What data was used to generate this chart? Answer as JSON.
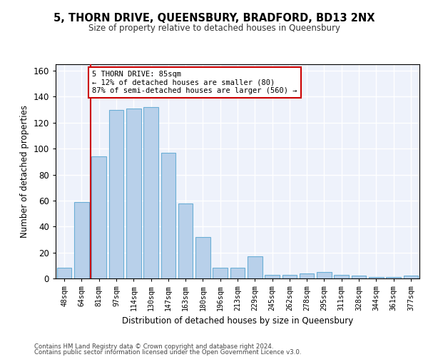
{
  "title": "5, THORN DRIVE, QUEENSBURY, BRADFORD, BD13 2NX",
  "subtitle": "Size of property relative to detached houses in Queensbury",
  "xlabel": "Distribution of detached houses by size in Queensbury",
  "ylabel": "Number of detached properties",
  "bar_color": "#b8d0ea",
  "bar_edge_color": "#6baed6",
  "categories": [
    "48sqm",
    "64sqm",
    "81sqm",
    "97sqm",
    "114sqm",
    "130sqm",
    "147sqm",
    "163sqm",
    "180sqm",
    "196sqm",
    "213sqm",
    "229sqm",
    "245sqm",
    "262sqm",
    "278sqm",
    "295sqm",
    "311sqm",
    "328sqm",
    "344sqm",
    "361sqm",
    "377sqm"
  ],
  "values": [
    8,
    59,
    94,
    130,
    131,
    132,
    97,
    58,
    32,
    8,
    8,
    17,
    3,
    3,
    4,
    5,
    3,
    2,
    1,
    1,
    2
  ],
  "ylim": [
    0,
    165
  ],
  "yticks": [
    0,
    20,
    40,
    60,
    80,
    100,
    120,
    140,
    160
  ],
  "vline_x_index": 2,
  "vline_color": "#cc0000",
  "annotation_text": "5 THORN DRIVE: 85sqm\n← 12% of detached houses are smaller (80)\n87% of semi-detached houses are larger (560) →",
  "annotation_box_color": "#ffffff",
  "annotation_box_edge_color": "#cc0000",
  "footer1": "Contains HM Land Registry data © Crown copyright and database right 2024.",
  "footer2": "Contains public sector information licensed under the Open Government Licence v3.0.",
  "background_color": "#eef2fb",
  "grid_color": "#ffffff",
  "fig_bg_color": "#ffffff"
}
